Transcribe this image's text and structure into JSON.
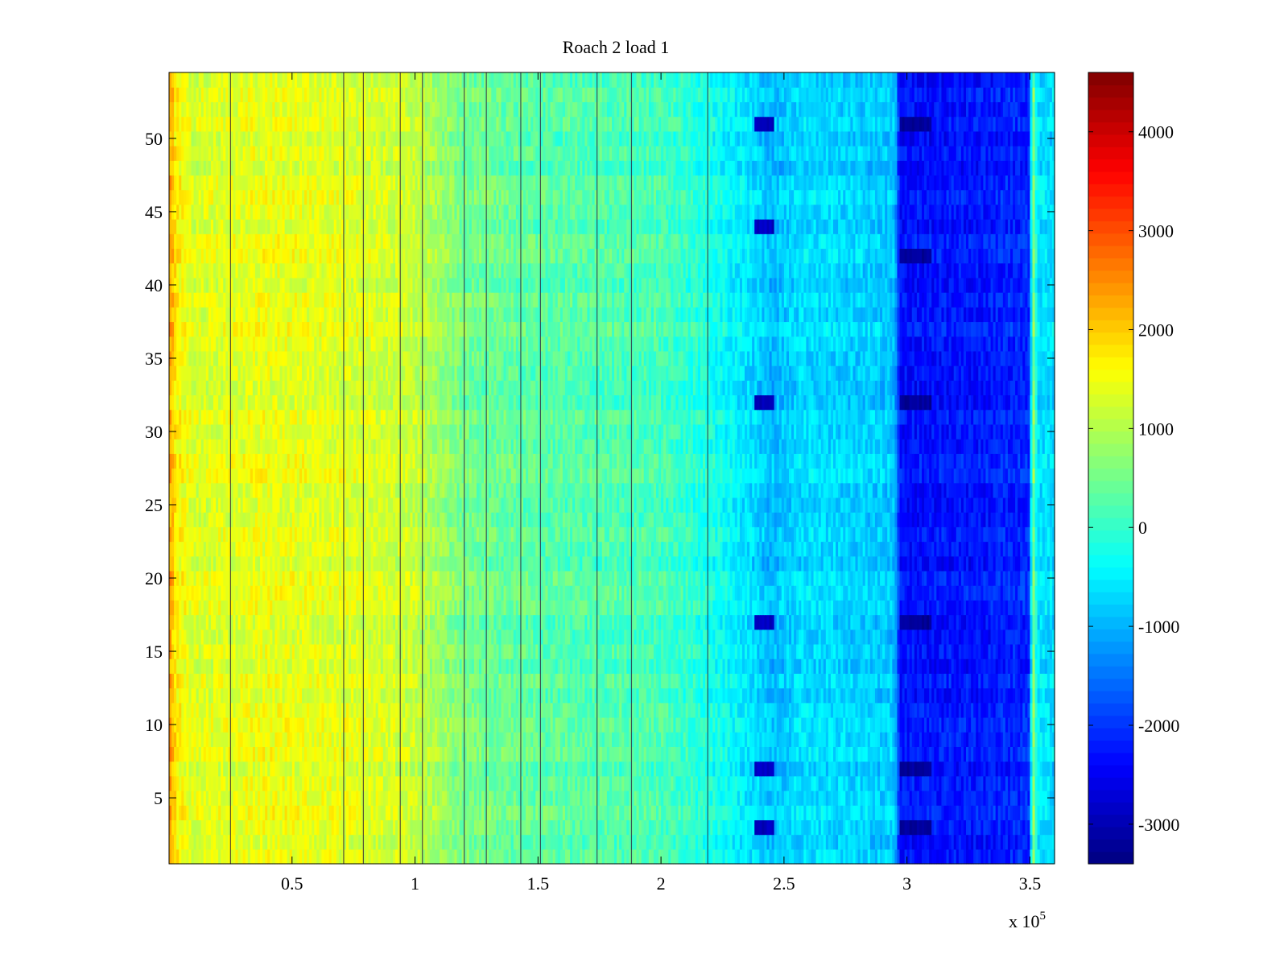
{
  "chart_data": {
    "type": "heatmap",
    "title": "Roach 2 load 1",
    "xlabel": "",
    "ylabel": "",
    "x_exponent_label": "x 10",
    "x_exponent_power": "5",
    "xlim": [
      0,
      3.6
    ],
    "ylim": [
      0.5,
      54.5
    ],
    "xticks": [
      0.5,
      1,
      1.5,
      2,
      2.5,
      3,
      3.5
    ],
    "xtick_labels": [
      "0.5",
      "1",
      "1.5",
      "2",
      "2.5",
      "3",
      "3.5"
    ],
    "yticks": [
      5,
      10,
      15,
      20,
      25,
      30,
      35,
      40,
      45,
      50
    ],
    "ytick_labels": [
      "5",
      "10",
      "15",
      "20",
      "25",
      "30",
      "35",
      "40",
      "45",
      "50"
    ],
    "rows": 54,
    "colormap": "jet",
    "color_range": [
      -3400,
      4600
    ],
    "colorbar_ticks": [
      4000,
      3000,
      2000,
      1000,
      0,
      -1000,
      -2000,
      -3000
    ],
    "colorbar_tick_labels": [
      "4000",
      "3000",
      "2000",
      "1000",
      "0",
      "-1000",
      "-2000",
      "-3000"
    ],
    "column_profile": [
      {
        "x": 0.0,
        "v": 2400
      },
      {
        "x": 0.03,
        "v": 1700
      },
      {
        "x": 0.1,
        "v": 1300
      },
      {
        "x": 0.4,
        "v": 1450
      },
      {
        "x": 0.75,
        "v": 1350
      },
      {
        "x": 1.0,
        "v": 1150
      },
      {
        "x": 1.2,
        "v": 500
      },
      {
        "x": 1.5,
        "v": 300
      },
      {
        "x": 2.0,
        "v": 150
      },
      {
        "x": 2.2,
        "v": -200
      },
      {
        "x": 2.38,
        "v": -700
      },
      {
        "x": 2.45,
        "v": -950
      },
      {
        "x": 2.58,
        "v": -650
      },
      {
        "x": 2.95,
        "v": -850
      },
      {
        "x": 2.97,
        "v": -2300
      },
      {
        "x": 3.3,
        "v": -2250
      },
      {
        "x": 3.5,
        "v": -2100
      },
      {
        "x": 3.51,
        "v": 1000
      },
      {
        "x": 3.53,
        "v": -600
      },
      {
        "x": 3.6,
        "v": -700
      }
    ],
    "dark_lines_x": [
      0.25,
      0.71,
      0.79,
      0.94,
      1.03,
      1.2,
      1.29,
      1.43,
      1.51,
      1.74,
      1.88,
      2.19
    ],
    "dark_patches": [
      {
        "x0": 2.38,
        "x1": 2.46,
        "rows": [
          3,
          7,
          17,
          32,
          44,
          51
        ],
        "v": -2900
      },
      {
        "x0": 2.97,
        "x1": 3.1,
        "rows": [
          3,
          7,
          17,
          32,
          42,
          51
        ],
        "v": -3200
      }
    ],
    "grid": false,
    "colorbar_position": "right"
  }
}
